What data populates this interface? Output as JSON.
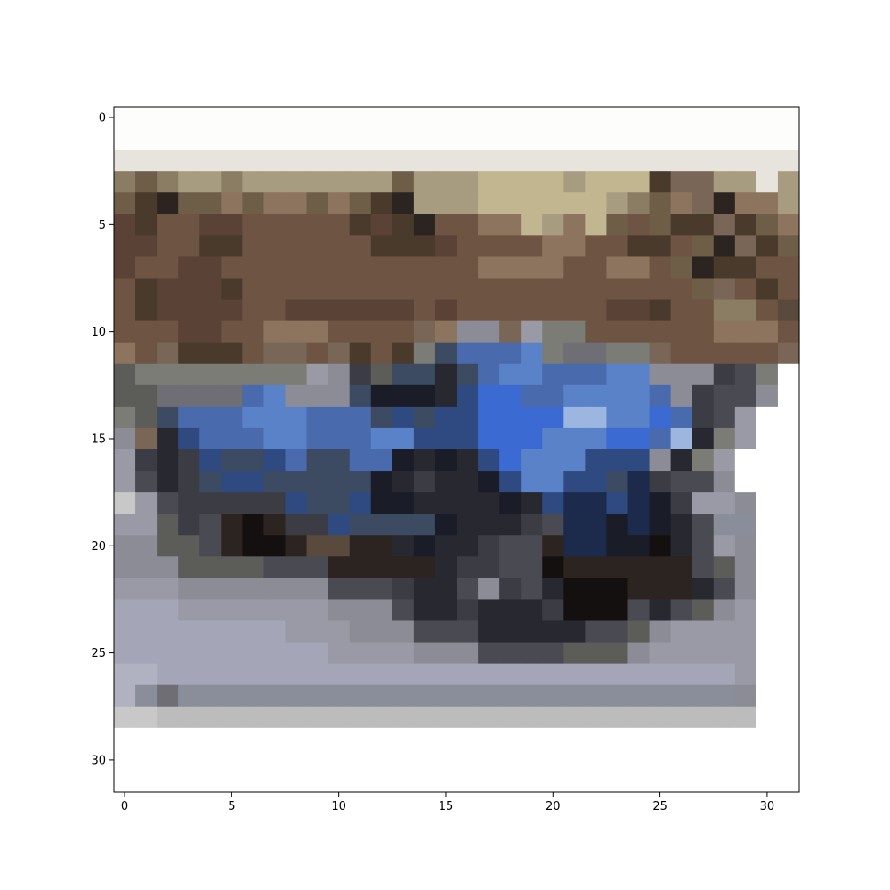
{
  "image": {
    "rows": 32,
    "cols": 32,
    "palette": {
      "a": "#fdfdfb",
      "b": "#e6e4dc",
      "c": "#8a7d64",
      "d": "#6e5e48",
      "e": "#a89c80",
      "f": "#c2b690",
      "g": "#4a3a2c",
      "h": "#5a4236",
      "i": "#6e5442",
      "j": "#7a6656",
      "k": "#8c745e",
      "l": "#7c7c76",
      "m": "#5c5c58",
      "n": "#6e6e74",
      "o": "#8c8c96",
      "p": "#3c4a62",
      "q": "#4a6aae",
      "r": "#5a82c8",
      "s": "#2e4a80",
      "t": "#1a1c28",
      "u": "#3a6ad2",
      "v": "#9cb6e0",
      "w": "#282830",
      "x": "#2c2420",
      "y": "#3c3c44",
      "z": "#9a9aa6",
      "A": "#a4a6b8",
      "B": "#b0b2c2",
      "C": "#8a8e9a",
      "D": "#bcbcbc",
      "E": "#ffffff",
      "F": "#141010",
      "G": "#1c2a4c",
      "H": "#c8c8c8",
      "I": "#5a4a3e",
      "J": "#4a4a52"
    },
    "pixels": [
      "aaaaaaaaaaaaaaaaaaaaaaaaaaaaaaaa",
      "aaaaaaaaaaaaaaaaaaaaaaaaaaaaaaaa",
      "bbbbbbbbbbbbbbbbbbbbbbbbbbbbbbbb",
      "cdceeceeeeeeedeeeffffefffgjjeebe",
      "dgxddkdkkdkdgxeeeffffffecdkjxkke",
      "hgiihhiiiiighgxiikkfekfdidggjgdk",
      "hhiiggiiiiiiggghiiiikkiiggidxjgd",
      "hiihhiiiiiiiiiiiikkkkiikkidxggii",
      "ighhhgiiiiiiiiiiiiiiiiiiiiidjigi",
      "ighhhhiihhhhhhihiiiiiiihhgiicciI",
      "iiihhiikkkiiiijkoojzlliiiiiikkki",
      "kijgggijjijgiglpqqqrlnnlljiiiiij",
      "mllllllllzoymppwpqrrqqqrroooyJl",
      "mmnnnnqroooptttwsuuqqrrrrqoyJJo",
      "lmpqqqrrrqqqpspssuuuuvvrruqyJz",
      "ojwsqqqrrqqqrrsssuuurrruuqvwlz",
      "zywysppsqppqqtwtwsurrrsssowlz",
      "zJwypssppppptwywwtsrrsspGyJJo",
      "HzJyyyyysppsttwwwwtwsGGsGtyzzo",
      "zzmyJxFxyyspppptwwwyJGGtGtwJCC",
      "oommJxFFxIIxxwtwwyJJxGGttFwJzo",
      "ooommmmJJJxxxxxwyyJJFxxxxxxJmo",
      "zzzoooooooJJJywwJoyJwFFFxxxwJo",
      "AAAzzzzzzzoooJwwywwwyFFFJwJmoz",
      "AAAAAAAAzzzoooJJJwwwwwJJmozzzz",
      "AAAAAAAAAAzzzzoooJJJJmmmozzzzz",
      "BBAAAAAAAAAAAAAAAAAAAAAAAAAAAz",
      "BCnCCCCCCCCCCCCCCCCCCCCCCCCCCo",
      "HHDDDDDDDDDDDDDDDDDDDDDDDDDDDD",
      "EEEEEEEEEEEEEEEEEEEEEEEEEEEEEE",
      "EEEEEEEEEEEEEEEEEEEEEEEEEEEEEE",
      "EEEEEEEEEEEEEEEEEEEEEEEEEEEEEE"
    ]
  },
  "axes": {
    "x_ticks": [
      "0",
      "5",
      "10",
      "15",
      "20",
      "25",
      "30"
    ],
    "y_ticks": [
      "0",
      "5",
      "10",
      "15",
      "20",
      "25",
      "30"
    ]
  }
}
